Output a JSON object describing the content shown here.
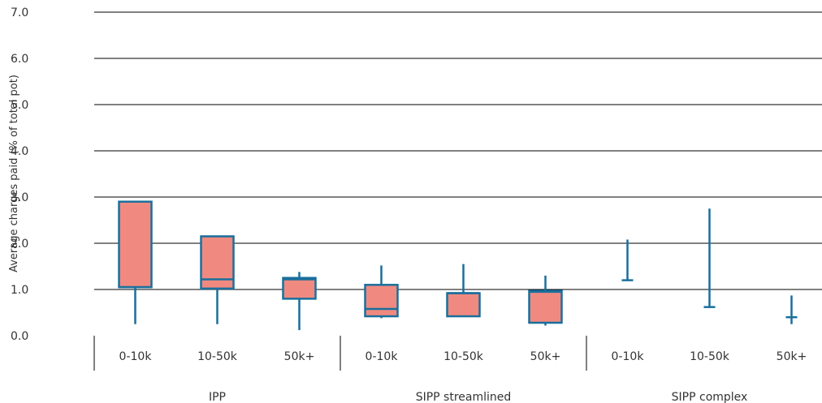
{
  "chart_data": {
    "type": "box",
    "title": "",
    "ylabel": "Average charges paid (% of total pot)",
    "xlabel": "",
    "ylim": [
      0,
      7
    ],
    "yticks": [
      "0.0",
      "1.0",
      "2.0",
      "3.0",
      "4.0",
      "5.0",
      "6.0",
      "7.0"
    ],
    "grid": true,
    "colors": {
      "box_fill": "#f08a80",
      "box_stroke": "#1a6f9c",
      "grid": "#000000",
      "text": "#333333"
    },
    "groups": [
      {
        "name": "IPP",
        "categories": [
          {
            "label": "0-10k",
            "min": 0.25,
            "q1": 1.05,
            "median": 1.05,
            "q3": 2.9,
            "max": 2.9
          },
          {
            "label": "10-50k",
            "min": 0.25,
            "q1": 1.02,
            "median": 1.22,
            "q3": 2.15,
            "max": 2.15
          },
          {
            "label": "50k+",
            "min": 0.12,
            "q1": 0.8,
            "median": 1.22,
            "q3": 1.25,
            "max": 1.38
          }
        ]
      },
      {
        "name": "SIPP streamlined",
        "categories": [
          {
            "label": "0-10k",
            "min": 0.38,
            "q1": 0.42,
            "median": 0.58,
            "q3": 1.1,
            "max": 1.52
          },
          {
            "label": "10-50k",
            "min": 0.42,
            "q1": 0.42,
            "median": 0.92,
            "q3": 0.92,
            "max": 1.55
          },
          {
            "label": "50k+",
            "min": 0.22,
            "q1": 0.28,
            "median": 0.95,
            "q3": 0.97,
            "max": 1.3
          }
        ]
      },
      {
        "name": "SIPP complex",
        "categories": [
          {
            "label": "0-10k",
            "min": 1.2,
            "q1": null,
            "median": 1.2,
            "q3": null,
            "max": 2.08
          },
          {
            "label": "10-50k",
            "min": 0.62,
            "q1": null,
            "median": 0.62,
            "q3": null,
            "max": 2.75
          },
          {
            "label": "50k+",
            "min": 0.25,
            "q1": null,
            "median": 0.4,
            "q3": null,
            "max": 0.87
          }
        ]
      }
    ]
  }
}
